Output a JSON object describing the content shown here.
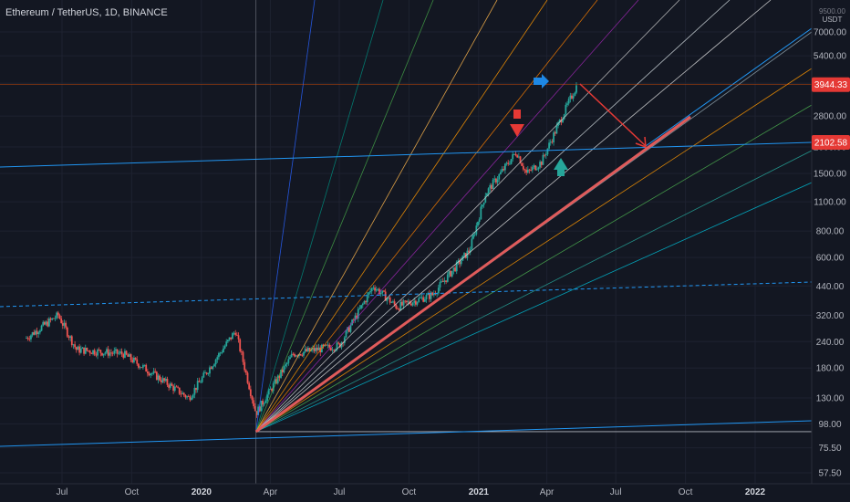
{
  "legend": {
    "title": "Ethereum / TetherUS, 1D, BINANCE"
  },
  "axis": {
    "currency": "USDT",
    "top_price": "9500.00"
  },
  "colors": {
    "background": "#131722",
    "grid": "#1e2230",
    "candle_up": "#26a69a",
    "candle_down": "#ef5350",
    "gann_fan": [
      "#2962ff",
      "#00897b",
      "#43a047",
      "#ffb74d",
      "#ff9800",
      "#f57c00",
      "#9c27b0",
      "#c8c8c8",
      "#cfd8dc",
      "#e0e0e0",
      "#90a4ae",
      "#ff9800",
      "#4caf50",
      "#26a69a",
      "#00bcd4"
    ],
    "trendline_thick": "#e05b5b",
    "price_label": "#e53935",
    "blue_line": "#2196f3",
    "arrow_red": "#e53935",
    "arrow_blue": "#1e88e5",
    "arrow_teal": "#26a69a"
  },
  "chart_data": {
    "type": "candlestick",
    "title": "Ethereum / TetherUS, 1D, BINANCE",
    "scale": "log",
    "y_ticks": [
      "7000.00",
      "5400.00",
      "4000.00",
      "2800.00",
      "2000.00",
      "1500.00",
      "1100.00",
      "800.00",
      "600.00",
      "440.00",
      "320.00",
      "240.00",
      "180.00",
      "130.00",
      "98.00",
      "75.50",
      "57.50"
    ],
    "x_ticks": [
      "Jul",
      "Oct",
      "2020",
      "Apr",
      "Jul",
      "Oct",
      "2021",
      "Apr",
      "Jul",
      "Oct",
      "2022"
    ],
    "price_labels": [
      {
        "value": "3944.33",
        "price": 3944.33
      },
      {
        "value": "2102.58",
        "price": 2102.58
      }
    ],
    "approximate_close_path": [
      {
        "date": "2019-05-15",
        "price": 250
      },
      {
        "date": "2019-06-26",
        "price": 320
      },
      {
        "date": "2019-07-20",
        "price": 220
      },
      {
        "date": "2019-09-20",
        "price": 210
      },
      {
        "date": "2019-12-15",
        "price": 130
      },
      {
        "date": "2020-02-15",
        "price": 270
      },
      {
        "date": "2020-03-13",
        "price": 110
      },
      {
        "date": "2020-05-01",
        "price": 210
      },
      {
        "date": "2020-07-01",
        "price": 230
      },
      {
        "date": "2020-08-15",
        "price": 440
      },
      {
        "date": "2020-09-15",
        "price": 350
      },
      {
        "date": "2020-11-01",
        "price": 400
      },
      {
        "date": "2020-12-20",
        "price": 650
      },
      {
        "date": "2021-01-10",
        "price": 1200
      },
      {
        "date": "2021-02-20",
        "price": 1900
      },
      {
        "date": "2021-03-05",
        "price": 1500
      },
      {
        "date": "2021-03-25",
        "price": 1700
      },
      {
        "date": "2021-04-15",
        "price": 2500
      },
      {
        "date": "2021-05-11",
        "price": 3944
      }
    ]
  }
}
